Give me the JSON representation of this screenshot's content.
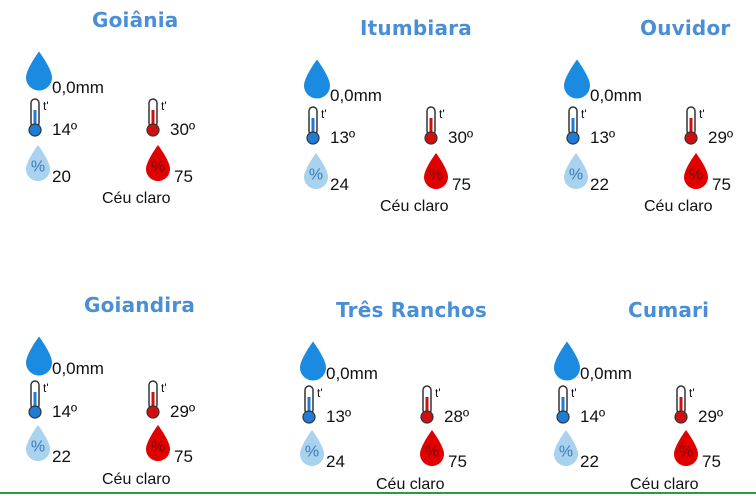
{
  "cities": [
    {
      "name": "Goiânia",
      "rain": "0,0mm",
      "min": "14º",
      "max": "30º",
      "hum_min": "20",
      "hum_max": "75",
      "condition": "Céu claro"
    },
    {
      "name": "Itumbiara",
      "rain": "0,0mm",
      "min": "13º",
      "max": "30º",
      "hum_min": "24",
      "hum_max": "75",
      "condition": "Céu claro"
    },
    {
      "name": "Ouvidor",
      "rain": "0,0mm",
      "min": "13º",
      "max": "29º",
      "hum_min": "22",
      "hum_max": "75",
      "condition": "Céu claro"
    },
    {
      "name": "Goiandira",
      "rain": "0,0mm",
      "min": "14º",
      "max": "29º",
      "hum_min": "22",
      "hum_max": "75",
      "condition": "Céu claro"
    },
    {
      "name": "Três Ranchos",
      "rain": "0,0mm",
      "min": "13º",
      "max": "28º",
      "hum_min": "24",
      "hum_max": "75",
      "condition": "Céu claro"
    },
    {
      "name": "Cumari",
      "rain": "0,0mm",
      "min": "14º",
      "max": "29º",
      "hum_min": "22",
      "hum_max": "75",
      "condition": "Céu claro"
    }
  ],
  "icon_labels": {
    "thermo": "t'",
    "percent": "%"
  },
  "colors": {
    "city": "#4a8fd6",
    "rain_drop": "#1a8be0",
    "cold": "#1e7bd6",
    "hot": "#d01010",
    "hum_low": "#a9d2ee",
    "hum_high": "#e00000",
    "footer_line": "#2e9a3c"
  }
}
